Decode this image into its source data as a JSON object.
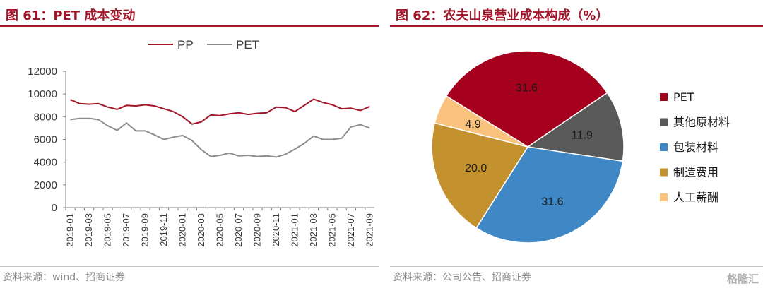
{
  "left_panel": {
    "title": "图 61：PET 成本变动",
    "source": "资料来源：wind、招商证券"
  },
  "right_panel": {
    "title": "图 62：农夫山泉营业成本构成（%）",
    "source": "资料来源：公司公告、招商证券"
  },
  "watermark": "格隆汇",
  "colors": {
    "title": "#a3162a",
    "pp": "#a3162a",
    "pet": "#8c8c8c"
  },
  "chart_data": [
    {
      "type": "line",
      "title": "",
      "xlabel": "",
      "ylabel": "",
      "ylim": [
        0,
        12000
      ],
      "yticks": [
        0,
        2000,
        4000,
        6000,
        8000,
        10000,
        12000
      ],
      "grid": false,
      "legend_position": "top",
      "x": [
        "2019-01",
        "2019-02",
        "2019-03",
        "2019-04",
        "2019-05",
        "2019-06",
        "2019-07",
        "2019-08",
        "2019-09",
        "2019-10",
        "2019-11",
        "2019-12",
        "2020-01",
        "2020-02",
        "2020-03",
        "2020-04",
        "2020-05",
        "2020-06",
        "2020-07",
        "2020-08",
        "2020-09",
        "2020-10",
        "2020-11",
        "2020-12",
        "2021-01",
        "2021-02",
        "2021-03",
        "2021-04",
        "2021-05",
        "2021-06",
        "2021-07",
        "2021-08",
        "2021-09"
      ],
      "xticks": [
        "2019-01",
        "2019-03",
        "2019-05",
        "2019-07",
        "2019-09",
        "2019-11",
        "2020-01",
        "2020-03",
        "2020-05",
        "2020-07",
        "2020-09",
        "2020-11",
        "2021-01",
        "2021-03",
        "2021-05",
        "2021-07",
        "2021-09"
      ],
      "series": [
        {
          "name": "PP",
          "color": "#a3162a",
          "values": [
            9500,
            9150,
            9100,
            9150,
            8850,
            8650,
            9000,
            8950,
            9050,
            8950,
            8700,
            8450,
            8000,
            7350,
            7550,
            8150,
            8100,
            8250,
            8350,
            8200,
            8300,
            8350,
            8850,
            8800,
            8450,
            9000,
            9550,
            9250,
            9050,
            8700,
            8750,
            8550,
            8900
          ]
        },
        {
          "name": "PET",
          "color": "#8c8c8c",
          "values": [
            7750,
            7850,
            7850,
            7750,
            7200,
            6800,
            7450,
            6750,
            6750,
            6400,
            6000,
            6200,
            6350,
            5900,
            5100,
            4500,
            4600,
            4800,
            4550,
            4600,
            4500,
            4550,
            4450,
            4700,
            5150,
            5650,
            6300,
            6000,
            6000,
            6100,
            7100,
            7300,
            7000
          ]
        }
      ]
    },
    {
      "type": "pie",
      "title": "",
      "legend_position": "right",
      "slices": [
        {
          "label": "PET",
          "value": 31.6,
          "color": "#a5001e"
        },
        {
          "label": "其他原材料",
          "value": 11.9,
          "color": "#595959"
        },
        {
          "label": "包装材料",
          "value": 31.6,
          "color": "#3f88c5"
        },
        {
          "label": "制造费用",
          "value": 20.0,
          "color": "#c4912f"
        },
        {
          "label": "人工薪酬",
          "value": 4.9,
          "color": "#f9c27d"
        }
      ]
    }
  ]
}
